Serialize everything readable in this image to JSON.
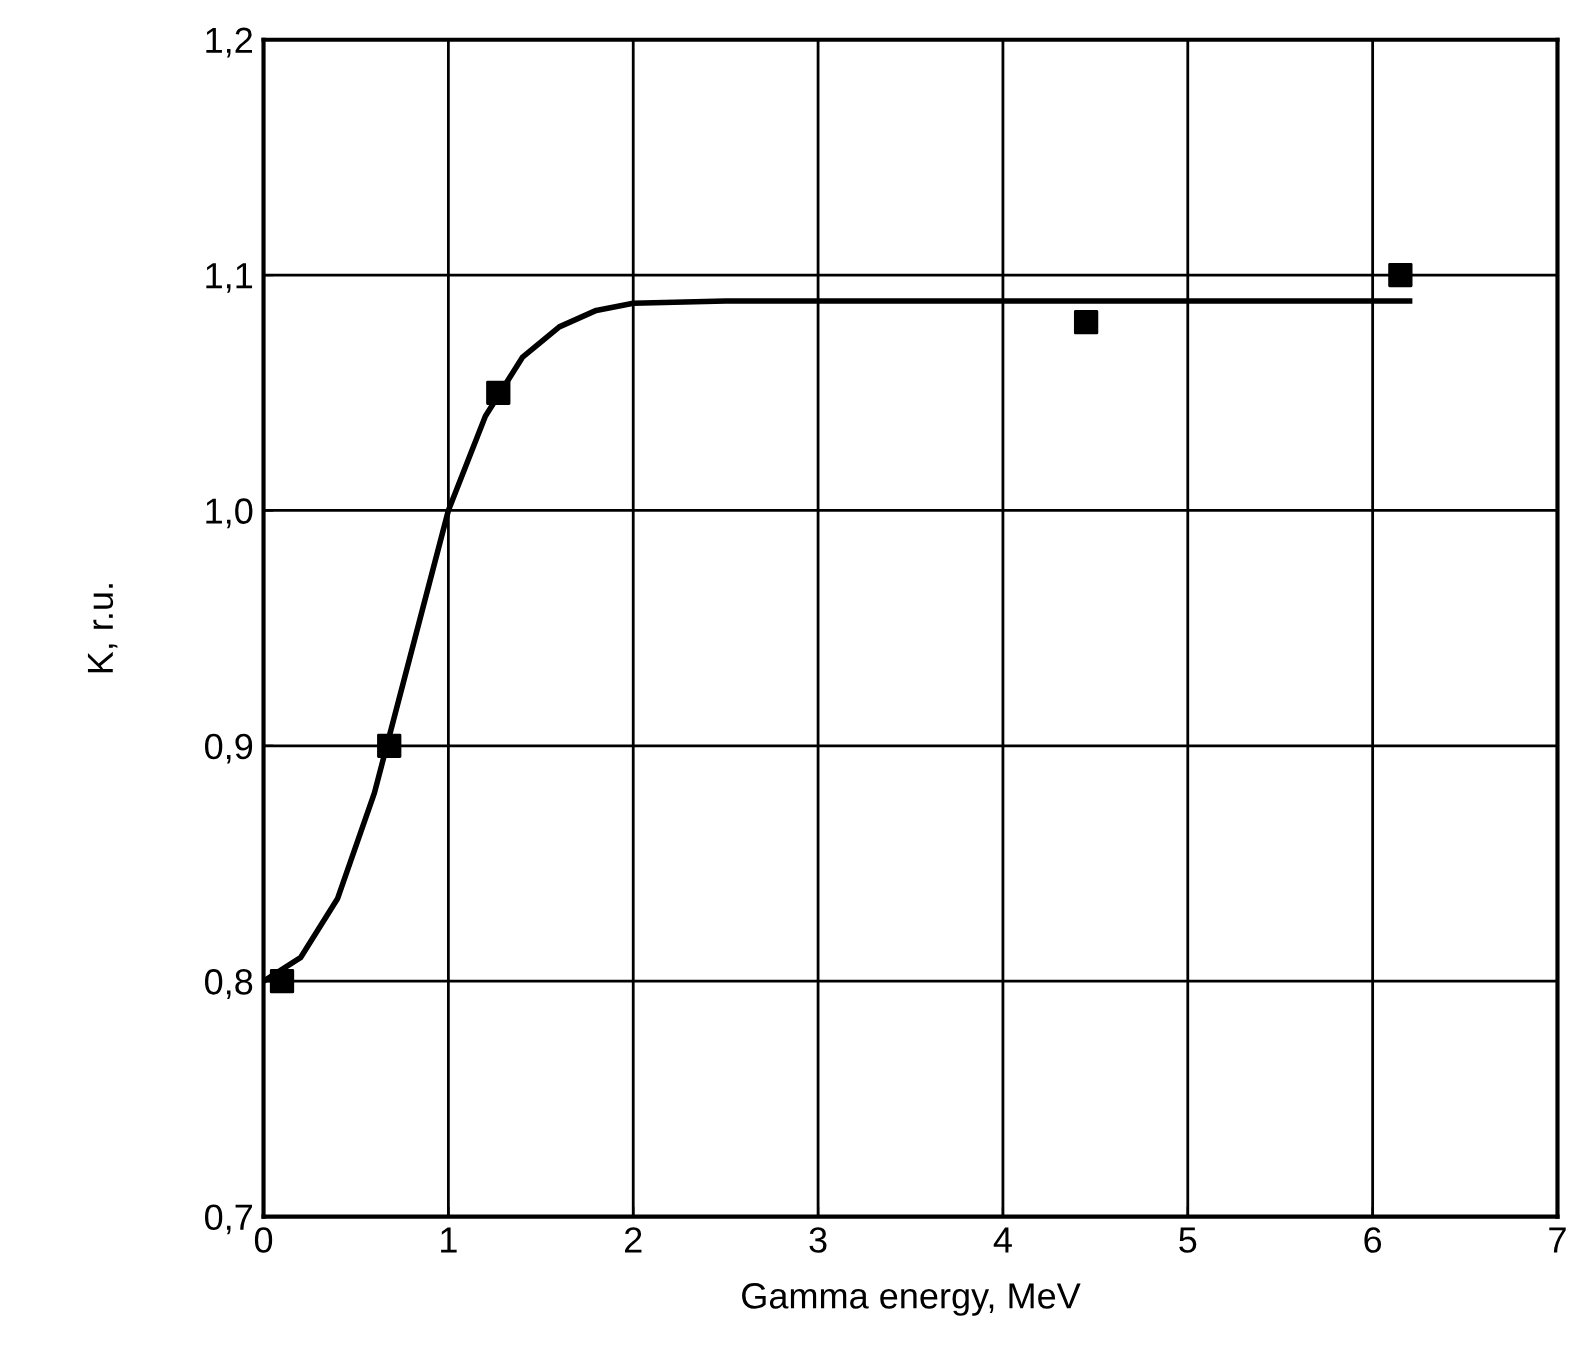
{
  "chart_data": {
    "type": "scatter",
    "xlabel": "Gamma energy, MeV",
    "ylabel": "K, r.u.",
    "xlim": [
      0,
      7
    ],
    "xticks": [
      0,
      1,
      2,
      3,
      4,
      5,
      6,
      7
    ],
    "ylim": [
      0.7,
      1.2
    ],
    "yticks": [
      {
        "value": 0.7,
        "label": "0,7"
      },
      {
        "value": 0.8,
        "label": "0,8"
      },
      {
        "value": 0.9,
        "label": "0,9"
      },
      {
        "value": 1.0,
        "label": "1,0"
      },
      {
        "value": 1.1,
        "label": "1,1"
      },
      {
        "value": 1.2,
        "label": "1,2"
      }
    ],
    "grid": true,
    "legend": false,
    "series": [
      {
        "color": "#000000",
        "marker": "square",
        "x": [
          0.1,
          0.68,
          1.27,
          4.45,
          6.15
        ],
        "values": [
          0.8,
          0.9,
          1.05,
          1.08,
          1.1
        ]
      },
      {
        "type": "line",
        "color": "#000000",
        "marker": "none",
        "line_style": "solid",
        "x": [
          0,
          0.2,
          0.4,
          0.6,
          0.8,
          1.0,
          1.2,
          1.4,
          1.6,
          1.8,
          2.0,
          2.5,
          3,
          4,
          5,
          6.2
        ],
        "values": [
          0.8,
          0.81,
          0.835,
          0.88,
          0.94,
          1.0,
          1.04,
          1.065,
          1.078,
          1.085,
          1.088,
          1.089,
          1.089,
          1.089,
          1.089,
          1.089
        ]
      }
    ]
  }
}
